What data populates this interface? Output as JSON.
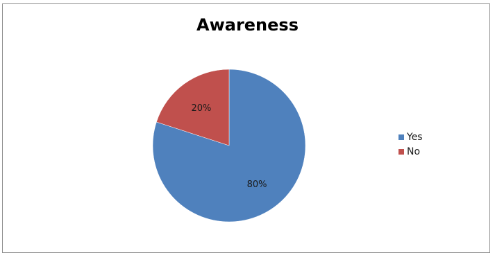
{
  "chart_data": {
    "type": "pie",
    "title": "Awareness",
    "categories": [
      "Yes",
      "No"
    ],
    "values": [
      80,
      20
    ],
    "labels": [
      "80%",
      "20%"
    ],
    "colors": [
      "#4f81bd",
      "#c0504d"
    ],
    "start_angle_deg": 0,
    "direction": "clockwise",
    "legend_position": "right"
  }
}
